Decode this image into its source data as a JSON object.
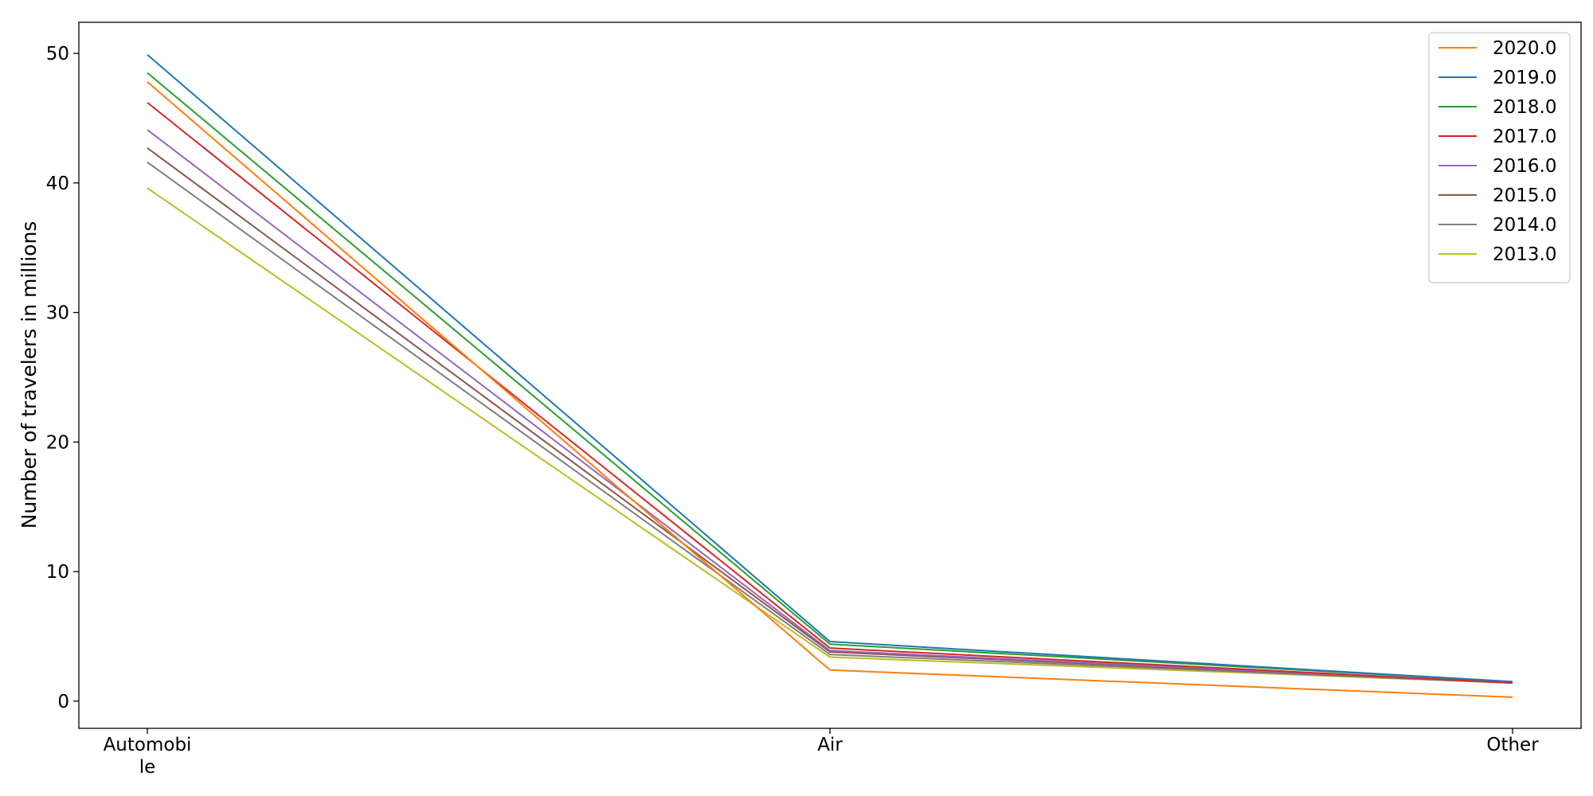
{
  "chart_data": {
    "type": "line",
    "categories": [
      "Automobile",
      "Air",
      "Other"
    ],
    "category_tick_labels": [
      [
        "Automobi",
        "le"
      ],
      [
        "Air"
      ],
      [
        "Other"
      ]
    ],
    "title": "",
    "xlabel": "",
    "ylabel": "Number of travelers in millions",
    "ylim": [
      -2.1,
      52.4
    ],
    "yticks": [
      0,
      10,
      20,
      30,
      40,
      50
    ],
    "grid": false,
    "legend_position": "top-right",
    "series": [
      {
        "name": "2020.0",
        "color": "#ff7f0e",
        "values": [
          47.8,
          2.4,
          0.3
        ]
      },
      {
        "name": "2019.0",
        "color": "#1f77b4",
        "values": [
          49.9,
          4.6,
          1.5
        ]
      },
      {
        "name": "2018.0",
        "color": "#2ca02c",
        "values": [
          48.5,
          4.4,
          1.5
        ]
      },
      {
        "name": "2017.0",
        "color": "#d62728",
        "values": [
          46.2,
          4.1,
          1.4
        ]
      },
      {
        "name": "2016.0",
        "color": "#9467bd",
        "values": [
          44.1,
          3.9,
          1.4
        ]
      },
      {
        "name": "2015.0",
        "color": "#8c564b",
        "values": [
          42.7,
          3.8,
          1.4
        ]
      },
      {
        "name": "2014.0",
        "color": "#7f7f7f",
        "values": [
          41.6,
          3.6,
          1.4
        ]
      },
      {
        "name": "2013.0",
        "color": "#bcbd22",
        "values": [
          39.6,
          3.4,
          1.4
        ]
      }
    ]
  }
}
